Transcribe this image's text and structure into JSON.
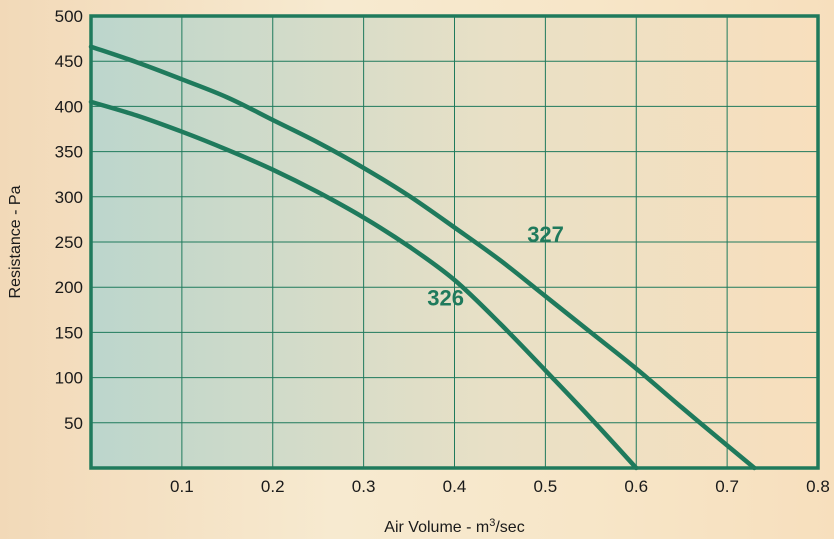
{
  "colors": {
    "plot_bg_left": "#bcd6cc",
    "plot_bg_right": "#f8dfbd",
    "frame": "#1f7a5c",
    "grid": "#1f7a5c",
    "series": "#1f7a5c"
  },
  "chart_data": {
    "type": "line",
    "title": "",
    "xlabel_prefix": "Air Volume - m",
    "xlabel_sup": "3",
    "xlabel_suffix": "/sec",
    "ylabel": "Resistance - Pa",
    "xlim": [
      0,
      0.8
    ],
    "ylim": [
      0,
      500
    ],
    "x_ticks": [
      0.1,
      0.2,
      0.3,
      0.4,
      0.5,
      0.6,
      0.7,
      0.8
    ],
    "x_tick_labels": [
      "0.1",
      "0.2",
      "0.3",
      "0.4",
      "0.5",
      "0.6",
      "0.7",
      "0.8"
    ],
    "y_ticks": [
      50,
      100,
      150,
      200,
      250,
      300,
      350,
      400,
      450,
      500
    ],
    "y_tick_labels": [
      "50",
      "100",
      "150",
      "200",
      "250",
      "300",
      "350",
      "400",
      "450",
      "500"
    ],
    "grid": true,
    "series": [
      {
        "name": "327",
        "label_at": [
          0.48,
          250
        ],
        "x": [
          0,
          0.05,
          0.1,
          0.15,
          0.2,
          0.25,
          0.3,
          0.35,
          0.4,
          0.45,
          0.5,
          0.55,
          0.6,
          0.65,
          0.7,
          0.73
        ],
        "y": [
          466,
          449,
          430,
          410,
          385,
          360,
          332,
          301,
          266,
          230,
          190,
          150,
          110,
          67,
          25,
          0
        ]
      },
      {
        "name": "326",
        "label_at": [
          0.37,
          180
        ],
        "x": [
          0,
          0.05,
          0.1,
          0.15,
          0.2,
          0.25,
          0.3,
          0.35,
          0.4,
          0.45,
          0.5,
          0.55,
          0.6
        ],
        "y": [
          405,
          390,
          372,
          352,
          330,
          305,
          277,
          245,
          208,
          160,
          108,
          55,
          0
        ]
      }
    ]
  }
}
